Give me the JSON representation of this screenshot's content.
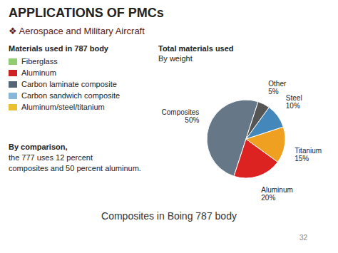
{
  "chart_data": {
    "type": "pie",
    "title": "APPLICATIONS OF PMCs",
    "subtitle": "❖ Aerospace and Military Aircraft",
    "categories": [
      "Composites",
      "Aluminum",
      "Titanium",
      "Steel",
      "Other"
    ],
    "values": [
      50,
      20,
      15,
      10,
      5
    ],
    "value_labels": [
      "50%",
      "20%",
      "15%",
      "10%",
      "5%"
    ],
    "colors": [
      "#667788",
      "#dd2222",
      "#f0a020",
      "#4488bb",
      "#555555"
    ],
    "data_labels": true,
    "annotations": [
      {
        "text": "Total materials used"
      },
      {
        "text": "By weight"
      },
      {
        "text": "Materials used in 787 body"
      },
      {
        "text": "Fiberglass",
        "color": "#90cc70"
      },
      {
        "text": "Aluminum",
        "color": "#cc2222"
      },
      {
        "text": "Carbon laminate composite",
        "color": "#556677"
      },
      {
        "text": "Carbon sandwich composite",
        "color": "#88b8d8"
      },
      {
        "text": "Aluminum/steel/titanium",
        "color": "#e8c030"
      },
      {
        "text": "By comparison,"
      },
      {
        "text": "the 777 uses 12 percent"
      },
      {
        "text": "composites and 50 percent aluminum."
      },
      {
        "text": "Composites in Boing 787 body"
      },
      {
        "text": "32"
      }
    ]
  }
}
